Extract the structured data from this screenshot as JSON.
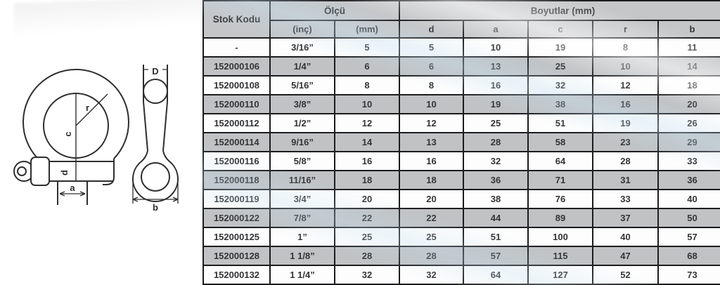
{
  "diagram": {
    "front_view": {
      "labels": {
        "radius": "r",
        "center_height": "c",
        "pin_diameter": "d",
        "inside_width": "a"
      }
    },
    "side_view": {
      "labels": {
        "pin_diameter": "D",
        "body_width": "b"
      }
    }
  },
  "table": {
    "header": {
      "stok_kodu": "Stok Kodu",
      "olcu": "Ölçü",
      "boyutlar": "Boyutlar (mm)",
      "sub_headers": [
        "(inç)",
        "(mm)",
        "d",
        "a",
        "c",
        "r",
        "b"
      ]
    },
    "rows": [
      [
        "-",
        "3/16”",
        "5",
        "5",
        "10",
        "19",
        "8",
        "11"
      ],
      [
        "152000106",
        "1/4”",
        "6",
        "6",
        "13",
        "25",
        "10",
        "14"
      ],
      [
        "152000108",
        "5/16”",
        "8",
        "8",
        "16",
        "32",
        "12",
        "18"
      ],
      [
        "152000110",
        "3/8”",
        "10",
        "10",
        "19",
        "38",
        "16",
        "20"
      ],
      [
        "152000112",
        "1/2”",
        "12",
        "12",
        "25",
        "51",
        "19",
        "26"
      ],
      [
        "152000114",
        "9/16”",
        "14",
        "13",
        "28",
        "58",
        "23",
        "29"
      ],
      [
        "152000116",
        "5/8”",
        "16",
        "16",
        "32",
        "64",
        "28",
        "33"
      ],
      [
        "152000118",
        "11/16”",
        "18",
        "18",
        "36",
        "71",
        "31",
        "36"
      ],
      [
        "152000119",
        "3/4”",
        "20",
        "20",
        "38",
        "76",
        "33",
        "40"
      ],
      [
        "152000122",
        "7/8”",
        "22",
        "22",
        "44",
        "89",
        "37",
        "50"
      ],
      [
        "152000125",
        "1”",
        "25",
        "25",
        "51",
        "100",
        "40",
        "57"
      ],
      [
        "152000128",
        "1 1/8”",
        "28",
        "28",
        "57",
        "115",
        "47",
        "68"
      ],
      [
        "152000132",
        "1 1/4”",
        "32",
        "32",
        "64",
        "127",
        "52",
        "73"
      ]
    ]
  },
  "colors": {
    "header_bg": "#c5c6c8",
    "row_alt_bg": "#c0c2c4",
    "row_bg": "#fdfdfd",
    "border": "#1c1c1e",
    "text": "#333436",
    "line": "#2e2e30",
    "gloss_blue": "#c6e0f0"
  }
}
